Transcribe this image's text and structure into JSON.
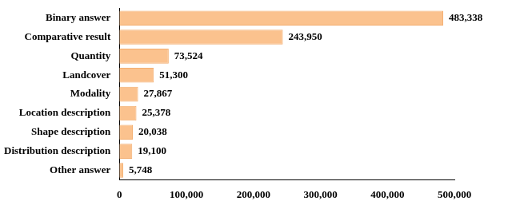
{
  "chart_data": {
    "type": "bar",
    "orientation": "horizontal",
    "categories": [
      "Binary answer",
      "Comparative result",
      "Quantity",
      "Landcover",
      "Modality",
      "Location description",
      "Shape description",
      "Distribution description",
      "Other answer"
    ],
    "values": [
      483338,
      243950,
      73524,
      51300,
      27867,
      25378,
      20038,
      19100,
      5748
    ],
    "value_labels": [
      "483,338",
      "243,950",
      "73,524",
      "51,300",
      "27,867",
      "25,378",
      "20,038",
      "19,100",
      "5,748"
    ],
    "color": "#fbc28e",
    "xlim": [
      0,
      500000
    ],
    "xticks": [
      {
        "value": 0,
        "label": "0"
      },
      {
        "value": 100000,
        "label": "100,000"
      },
      {
        "value": 200000,
        "label": "200,000"
      },
      {
        "value": 300000,
        "label": "300,000"
      },
      {
        "value": 400000,
        "label": "400,000"
      },
      {
        "value": 500000,
        "label": "500,000"
      }
    ],
    "grid": false,
    "data_labels": true
  }
}
